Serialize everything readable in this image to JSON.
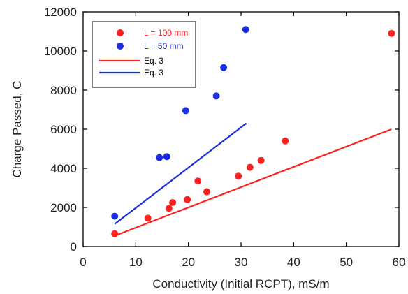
{
  "chart_data": {
    "type": "scatter",
    "xlabel": "Conductivity (Initial RCPT), mS/m",
    "ylabel": "Charge Passed, C",
    "xlim": [
      0,
      60
    ],
    "ylim": [
      0,
      12000
    ],
    "x_ticks": [
      0,
      10,
      20,
      30,
      40,
      50,
      60
    ],
    "y_ticks": [
      0,
      2000,
      4000,
      6000,
      8000,
      10000,
      12000
    ],
    "grid": false,
    "legend_position": "top-left",
    "series": [
      {
        "name": "L = 100 mm",
        "kind": "points",
        "color": "#ff2020",
        "points": [
          [
            6.0,
            650
          ],
          [
            12.3,
            1450
          ],
          [
            16.3,
            1950
          ],
          [
            17.0,
            2250
          ],
          [
            19.8,
            2400
          ],
          [
            21.8,
            3350
          ],
          [
            23.5,
            2800
          ],
          [
            29.5,
            3600
          ],
          [
            31.7,
            4050
          ],
          [
            33.8,
            4400
          ],
          [
            38.4,
            5400
          ],
          [
            58.6,
            10900
          ]
        ]
      },
      {
        "name": "L = 50 mm",
        "kind": "points",
        "color": "#1a2ee0",
        "points": [
          [
            6.0,
            1550
          ],
          [
            14.5,
            4550
          ],
          [
            15.9,
            4600
          ],
          [
            19.5,
            6950
          ],
          [
            25.3,
            7700
          ],
          [
            26.7,
            9150
          ],
          [
            30.9,
            11100
          ]
        ]
      },
      {
        "name": "Eq. 3",
        "kind": "line",
        "color": "#ff2020",
        "points": [
          [
            6.0,
            550
          ],
          [
            58.6,
            6000
          ]
        ]
      },
      {
        "name": "Eq. 3",
        "kind": "line",
        "color": "#1a2ee0",
        "points": [
          [
            6.0,
            1150
          ],
          [
            31.0,
            6300
          ]
        ]
      }
    ]
  }
}
